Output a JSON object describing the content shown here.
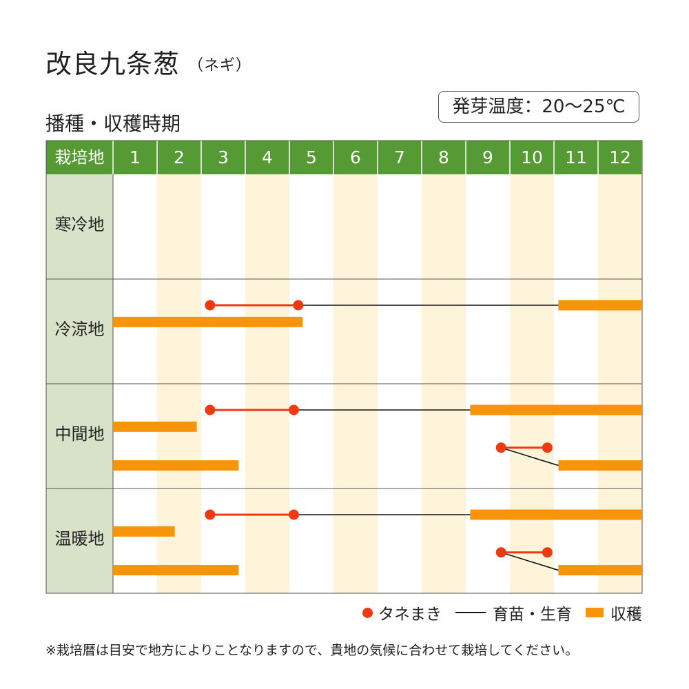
{
  "title": "改良九条葱",
  "title_sub": "（ネギ）",
  "subtitle": "播種・収穫時期",
  "germination": "発芽温度：20～25℃",
  "note": "※栽培暦は目安で地方によりことなりますので、貴地の気候に合わせて栽培してください。",
  "legend": {
    "sowing": "タネまき",
    "growing": "育苗・生育",
    "harvest": "収穫"
  },
  "colors": {
    "header": "#559a34",
    "region_bg": "#d8e2c8",
    "alt_col": "#fdf4da",
    "sowing": "#ee3a12",
    "harvest": "#f7940a",
    "growing": "#111111"
  },
  "chart_data": {
    "type": "gantt",
    "corner_label": "栽培地",
    "months": [
      "1",
      "2",
      "3",
      "4",
      "5",
      "6",
      "7",
      "8",
      "9",
      "10",
      "11",
      "12"
    ],
    "regions": [
      {
        "name": "寒冷地",
        "items": []
      },
      {
        "name": "冷涼地",
        "items": [
          {
            "type": "sowing",
            "start": 3.2,
            "end": 5.2,
            "lane": 0.25
          },
          {
            "type": "growing",
            "start": 5.2,
            "end": 11.1,
            "lane": 0.25
          },
          {
            "type": "harvest",
            "start": 11.1,
            "end": 13.0,
            "lane": 0.25
          },
          {
            "type": "harvest",
            "start": 1.0,
            "end": 5.3,
            "lane": 0.41
          }
        ]
      },
      {
        "name": "中間地",
        "items": [
          {
            "type": "sowing",
            "start": 3.2,
            "end": 5.1,
            "lane": 0.25
          },
          {
            "type": "growing",
            "start": 5.1,
            "end": 9.1,
            "lane": 0.25
          },
          {
            "type": "harvest",
            "start": 9.1,
            "end": 13.0,
            "lane": 0.25
          },
          {
            "type": "harvest",
            "start": 1.0,
            "end": 2.9,
            "lane": 0.41
          },
          {
            "type": "sowing",
            "start": 9.8,
            "end": 10.85,
            "lane": 0.61
          },
          {
            "type": "growing",
            "start": 9.8,
            "end": 11.1,
            "lane": 0.61,
            "lane_end": 0.78
          },
          {
            "type": "harvest",
            "start": 1.0,
            "end": 3.85,
            "lane": 0.78
          },
          {
            "type": "harvest",
            "start": 11.1,
            "end": 13.0,
            "lane": 0.78
          }
        ]
      },
      {
        "name": "温暖地",
        "items": [
          {
            "type": "sowing",
            "start": 3.2,
            "end": 5.1,
            "lane": 0.25
          },
          {
            "type": "growing",
            "start": 5.1,
            "end": 9.1,
            "lane": 0.25
          },
          {
            "type": "harvest",
            "start": 9.1,
            "end": 13.0,
            "lane": 0.25
          },
          {
            "type": "harvest",
            "start": 1.0,
            "end": 2.4,
            "lane": 0.41
          },
          {
            "type": "sowing",
            "start": 9.8,
            "end": 10.85,
            "lane": 0.61
          },
          {
            "type": "growing",
            "start": 9.8,
            "end": 11.1,
            "lane": 0.61,
            "lane_end": 0.78
          },
          {
            "type": "harvest",
            "start": 1.0,
            "end": 3.85,
            "lane": 0.78
          },
          {
            "type": "harvest",
            "start": 11.1,
            "end": 13.0,
            "lane": 0.78
          }
        ]
      }
    ]
  }
}
